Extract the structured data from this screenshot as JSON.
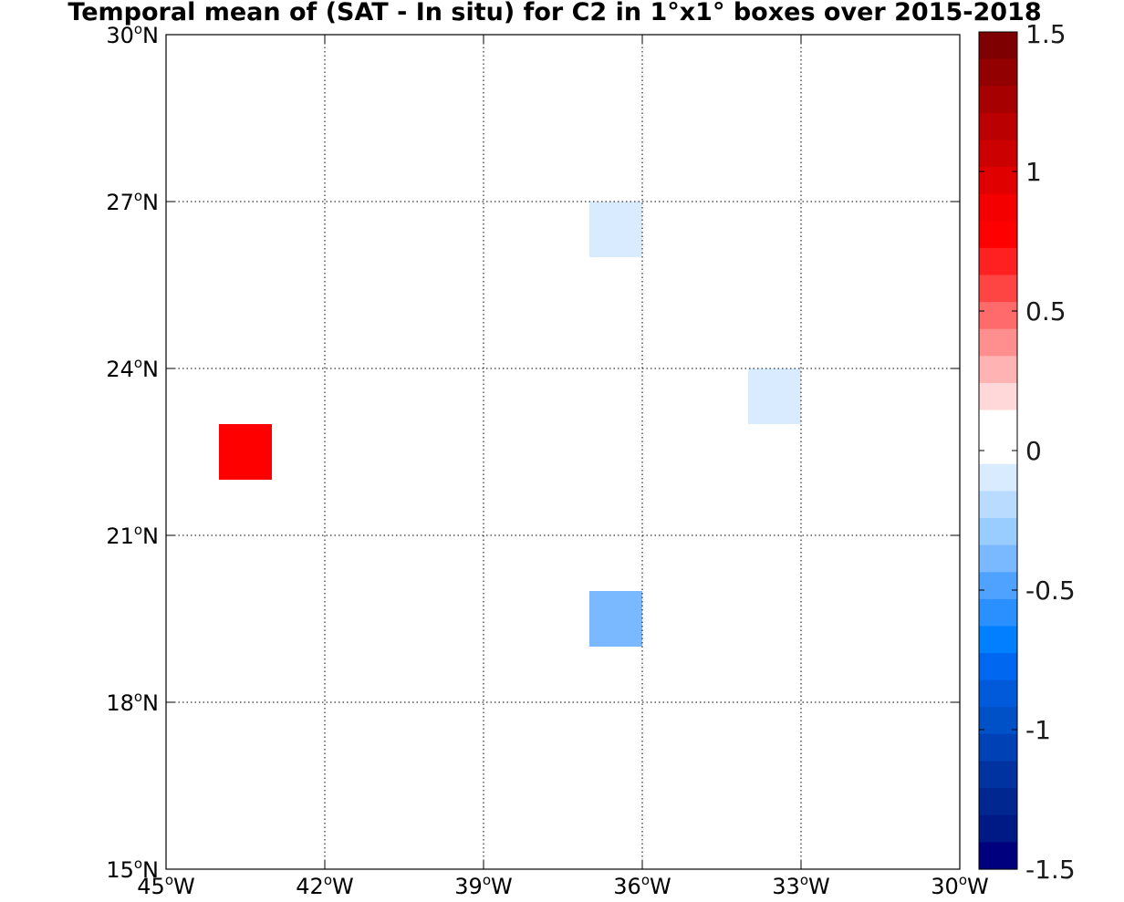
{
  "chart_data": {
    "type": "heatmap",
    "title": "Temporal mean of (SAT - In situ) for C2 in 1°x1° boxes over 2015-2018",
    "xlabel": "",
    "ylabel": "",
    "xlim": [
      -45,
      -30
    ],
    "ylim": [
      15,
      30
    ],
    "grid": true,
    "x_ticks": [
      {
        "value": -45,
        "num": "45",
        "sup": "o",
        "dir": "W"
      },
      {
        "value": -42,
        "num": "42",
        "sup": "o",
        "dir": "W"
      },
      {
        "value": -39,
        "num": "39",
        "sup": "o",
        "dir": "W"
      },
      {
        "value": -36,
        "num": "36",
        "sup": "o",
        "dir": "W"
      },
      {
        "value": -33,
        "num": "33",
        "sup": "o",
        "dir": "W"
      },
      {
        "value": -30,
        "num": "30",
        "sup": "o",
        "dir": "W"
      }
    ],
    "y_ticks": [
      {
        "value": 15,
        "num": "15",
        "sup": "o",
        "dir": "N"
      },
      {
        "value": 18,
        "num": "18",
        "sup": "o",
        "dir": "N"
      },
      {
        "value": 21,
        "num": "21",
        "sup": "o",
        "dir": "N"
      },
      {
        "value": 24,
        "num": "24",
        "sup": "o",
        "dir": "N"
      },
      {
        "value": 27,
        "num": "27",
        "sup": "o",
        "dir": "N"
      },
      {
        "value": 30,
        "num": "30",
        "sup": "o",
        "dir": "N"
      }
    ],
    "cells": [
      {
        "lon_min": -44,
        "lon_max": -43,
        "lat_min": 22,
        "lat_max": 23,
        "value": 0.8
      },
      {
        "lon_min": -37,
        "lon_max": -36,
        "lat_min": 26,
        "lat_max": 27,
        "value": -0.1
      },
      {
        "lon_min": -34,
        "lon_max": -33,
        "lat_min": 23,
        "lat_max": 24,
        "value": -0.1
      },
      {
        "lon_min": -37,
        "lon_max": -36,
        "lat_min": 19,
        "lat_max": 20,
        "value": -0.35
      }
    ],
    "colorbar": {
      "min": -1.5,
      "max": 1.5,
      "tick_labels": [
        "1.5",
        "1",
        "0.5",
        "0",
        "-0.5",
        "-1",
        "-1.5"
      ],
      "tick_values": [
        1.5,
        1,
        0.5,
        0,
        -0.5,
        -1,
        -1.5
      ],
      "colors_top_to_bottom": [
        "#7f0000",
        "#920000",
        "#a60000",
        "#ba0000",
        "#cd0000",
        "#e10000",
        "#f50000",
        "#ff0000",
        "#ff2121",
        "#ff4444",
        "#ff6a6a",
        "#ff8f8f",
        "#ffb3b3",
        "#ffd9d9",
        "#ffffff",
        "#ffffff",
        "#d9ebff",
        "#b8dbff",
        "#99ccff",
        "#7ab8ff",
        "#4fa2ff",
        "#2a8fff",
        "#007fff",
        "#0068f0",
        "#005ad9",
        "#0050c8",
        "#0042b5",
        "#0033a0",
        "#002690",
        "#001a85",
        "#00007f"
      ]
    }
  }
}
